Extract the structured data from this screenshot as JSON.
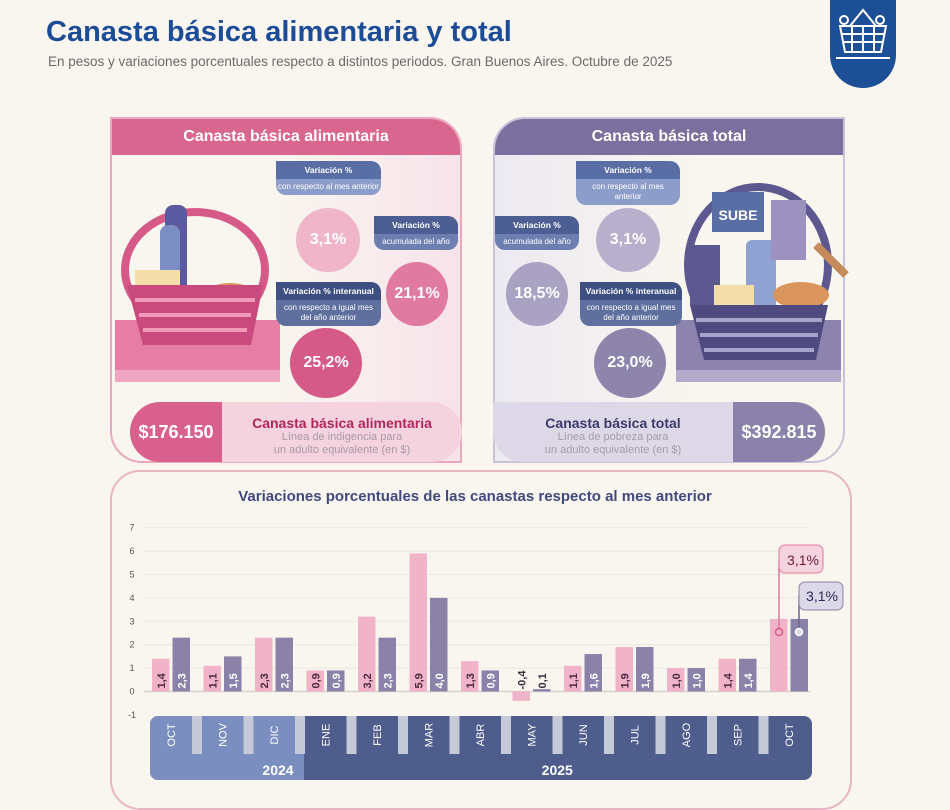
{
  "header": {
    "title": "Canasta básica alimentaria y total",
    "subtitle": "En pesos y variaciones porcentuales respecto a distintos periodos. Gran Buenos Aires. Octubre de 2025",
    "logo_icon": "shopping-basket-icon"
  },
  "cba": {
    "title": "Canasta básica alimentaria",
    "tag_mensual": {
      "h": "Variación %",
      "s": "con respecto al mes anterior",
      "v": "3,1%"
    },
    "tag_acum": {
      "h": "Variación %",
      "s": "acumulada del año",
      "v": "21,1%"
    },
    "tag_inter": {
      "h": "Variación % interanual",
      "s": "con respecto a igual mes del año anterior",
      "v": "25,2%"
    },
    "price": "$176.150",
    "name": "Canasta básica alimentaria",
    "desc1": "Línea de indigencia para",
    "desc2": "un adulto equivalente (en $)",
    "color": "#d9668f"
  },
  "cbt": {
    "title": "Canasta básica total",
    "basket_text": "SUBE",
    "tag_mensual": {
      "h": "Variación %",
      "s": "con respecto al mes anterior",
      "v": "3,1%"
    },
    "tag_acum": {
      "h": "Variación %",
      "s": "acumulada del año",
      "v": "18,5%"
    },
    "tag_inter": {
      "h": "Variación % interanual",
      "s": "con respecto a igual mes del año anterior",
      "v": "23,0%"
    },
    "price": "$392.815",
    "name": "Canasta básica total",
    "desc1": "Línea de pobreza para",
    "desc2": "un adulto equivalente (en $)",
    "color": "#7b6f9e"
  },
  "chart_data": {
    "type": "bar",
    "title": "Variaciones porcentuales de las canastas respecto al mes anterior",
    "categories": [
      "OCT",
      "NOV",
      "DIC",
      "ENE",
      "FEB",
      "MAR",
      "ABR",
      "MAY",
      "JUN",
      "JUL",
      "AGO",
      "SEP",
      "OCT"
    ],
    "years": [
      {
        "label": "2024",
        "count": 3
      },
      {
        "label": "2025",
        "count": 10
      }
    ],
    "series": [
      {
        "name": "Canasta básica alimentaria",
        "color": "#f1b3c8",
        "values": [
          1.4,
          1.1,
          2.3,
          0.9,
          3.2,
          5.9,
          1.3,
          -0.4,
          1.1,
          1.9,
          1.0,
          1.4,
          3.1
        ],
        "labels": [
          "1,4",
          "1,1",
          "2,3",
          "0,9",
          "3,2",
          "5,9",
          "1,3",
          "-0,4",
          "1,1",
          "1,9",
          "1,0",
          "1,4",
          ""
        ]
      },
      {
        "name": "Canasta básica total",
        "color": "#8a82a8",
        "values": [
          2.3,
          1.5,
          2.3,
          0.9,
          2.3,
          4.0,
          0.9,
          0.1,
          1.6,
          1.9,
          1.0,
          1.4,
          3.1
        ],
        "labels": [
          "2,3",
          "1,5",
          "2,3",
          "0,9",
          "2,3",
          "4,0",
          "0,9",
          "0,1",
          "1,6",
          "1,9",
          "1,0",
          "1,4",
          ""
        ]
      }
    ],
    "callouts": [
      "3,1%",
      "3,1%"
    ],
    "yticks": [
      "7",
      "6",
      "5",
      "4",
      "3",
      "2",
      "1",
      "0",
      "-1"
    ],
    "ylim": [
      -1,
      7
    ],
    "grid": true
  }
}
